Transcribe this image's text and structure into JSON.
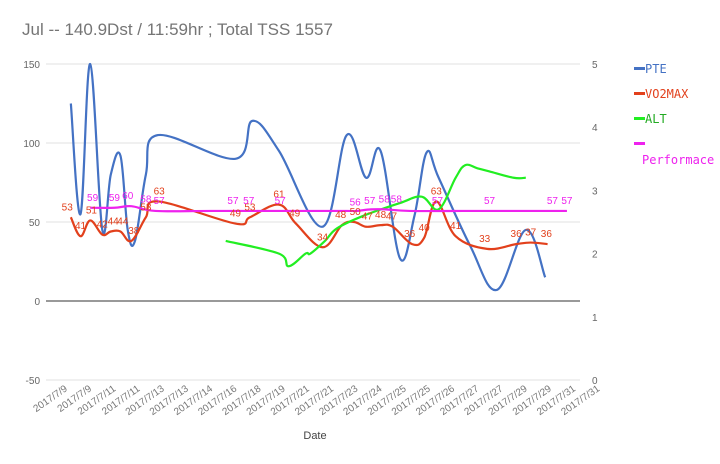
{
  "chart_data": {
    "type": "line",
    "title": "Jul -- 140.9Dst / 11:59hr ; Total TSS 1557",
    "xlabel": "Date",
    "ylabel_left": "",
    "ylabel_right": "",
    "ylim_left": [
      -50,
      150
    ],
    "ylim_right": [
      0,
      5
    ],
    "left_ticks": [
      "-50",
      "0",
      "50",
      "100",
      "150"
    ],
    "right_ticks": [
      "0",
      "1",
      "2",
      "3",
      "4",
      "5"
    ],
    "categories": [
      "2017/7/9",
      "2017/7/9",
      "2017/7/11",
      "2017/7/11",
      "2017/7/13",
      "2017/7/13",
      "2017/7/14",
      "2017/7/16",
      "2017/7/18",
      "2017/7/19",
      "2017/7/21",
      "2017/7/21",
      "2017/7/23",
      "2017/7/24",
      "2017/7/25",
      "2017/7/25",
      "2017/7/26",
      "2017/7/27",
      "2017/7/27",
      "2017/7/29",
      "2017/7/29",
      "2017/7/31",
      "2017/7/31"
    ],
    "grid": true,
    "legend_position": "right",
    "colors": {
      "PTE": "#4472c4",
      "VO2MAX": "#e2401c",
      "ALT": "#22ee22",
      "Performace": "#ee22ee"
    },
    "series": [
      {
        "name": "PTE",
        "axis": "left",
        "points": [
          [
            0.2,
            125
          ],
          [
            0.6,
            55
          ],
          [
            1.0,
            150
          ],
          [
            1.5,
            45
          ],
          [
            1.85,
            80
          ],
          [
            2.25,
            92
          ],
          [
            2.55,
            45
          ],
          [
            2.85,
            38
          ],
          [
            3.3,
            80
          ],
          [
            3.8,
            105
          ],
          [
            7.0,
            90
          ],
          [
            7.7,
            114
          ],
          [
            8.8,
            95
          ],
          [
            10.6,
            47
          ],
          [
            11.6,
            105
          ],
          [
            12.4,
            78
          ],
          [
            13.0,
            95
          ],
          [
            13.8,
            27
          ],
          [
            14.4,
            54
          ],
          [
            14.9,
            94
          ],
          [
            15.4,
            78
          ],
          [
            16.7,
            35
          ],
          [
            17.8,
            7
          ],
          [
            19.0,
            45
          ],
          [
            19.8,
            15
          ]
        ]
      },
      {
        "name": "VO2MAX",
        "axis": "left",
        "points": [
          [
            0.2,
            53
          ],
          [
            0.6,
            41
          ],
          [
            1.0,
            51
          ],
          [
            1.5,
            42
          ],
          [
            1.85,
            44
          ],
          [
            2.25,
            44
          ],
          [
            2.7,
            38
          ],
          [
            3.3,
            53
          ],
          [
            3.8,
            63
          ],
          [
            7.0,
            49
          ],
          [
            7.6,
            53
          ],
          [
            8.8,
            61
          ],
          [
            9.5,
            49
          ],
          [
            10.6,
            34
          ],
          [
            11.4,
            48
          ],
          [
            11.9,
            50
          ],
          [
            12.4,
            47
          ],
          [
            13.0,
            48
          ],
          [
            13.5,
            47
          ],
          [
            14.3,
            36
          ],
          [
            14.8,
            40
          ],
          [
            15.3,
            63
          ],
          [
            16.1,
            41
          ],
          [
            17.4,
            33
          ],
          [
            18.6,
            36
          ],
          [
            19.2,
            37
          ],
          [
            19.9,
            36
          ]
        ]
      },
      {
        "name": "ALT",
        "axis": "right",
        "points": [
          [
            6.6,
            2.2
          ],
          [
            8.8,
            2.0
          ],
          [
            9.2,
            1.8
          ],
          [
            9.9,
            2.0
          ],
          [
            10.1,
            2.0
          ],
          [
            10.7,
            2.2
          ],
          [
            11.2,
            2.4
          ],
          [
            12.3,
            2.6
          ],
          [
            13.8,
            2.8
          ],
          [
            14.7,
            2.9
          ],
          [
            15.4,
            2.7
          ],
          [
            16.1,
            3.2
          ],
          [
            16.5,
            3.4
          ],
          [
            17.0,
            3.35
          ],
          [
            17.5,
            3.3
          ],
          [
            18.5,
            3.2
          ],
          [
            19.0,
            3.2
          ]
        ]
      },
      {
        "name": "Performace",
        "axis": "left",
        "points": [
          [
            1.0,
            59
          ],
          [
            2.0,
            59
          ],
          [
            2.7,
            60
          ],
          [
            3.7,
            57
          ],
          [
            6.0,
            57
          ],
          [
            8.8,
            57
          ],
          [
            11.6,
            57
          ],
          [
            12.0,
            57
          ],
          [
            12.6,
            58
          ],
          [
            13.2,
            58
          ],
          [
            14.2,
            57
          ],
          [
            16.4,
            57
          ],
          [
            17.0,
            57
          ],
          [
            18.0,
            57
          ],
          [
            19.4,
            57
          ],
          [
            20.7,
            57
          ]
        ]
      }
    ],
    "data_labels": [
      {
        "series": "VO2MAX",
        "x": 0.05,
        "y": 53,
        "text": "53"
      },
      {
        "series": "VO2MAX",
        "x": 0.6,
        "y": 41,
        "text": "41"
      },
      {
        "series": "VO2MAX",
        "x": 1.05,
        "y": 51,
        "text": "51"
      },
      {
        "series": "VO2MAX",
        "x": 1.5,
        "y": 42,
        "text": "42"
      },
      {
        "series": "VO2MAX",
        "x": 1.95,
        "y": 44,
        "text": "44"
      },
      {
        "series": "VO2MAX",
        "x": 2.35,
        "y": 44,
        "text": "44"
      },
      {
        "series": "VO2MAX",
        "x": 2.8,
        "y": 38,
        "text": "38"
      },
      {
        "series": "VO2MAX",
        "x": 3.3,
        "y": 53,
        "text": "53"
      },
      {
        "series": "VO2MAX",
        "x": 3.85,
        "y": 63,
        "text": "63"
      },
      {
        "series": "VO2MAX",
        "x": 7.0,
        "y": 49,
        "text": "49"
      },
      {
        "series": "VO2MAX",
        "x": 7.6,
        "y": 53,
        "text": "53"
      },
      {
        "series": "VO2MAX",
        "x": 8.8,
        "y": 61,
        "text": "61"
      },
      {
        "series": "VO2MAX",
        "x": 9.45,
        "y": 49,
        "text": "49"
      },
      {
        "series": "VO2MAX",
        "x": 10.6,
        "y": 34,
        "text": "34"
      },
      {
        "series": "VO2MAX",
        "x": 11.35,
        "y": 48,
        "text": "48"
      },
      {
        "series": "VO2MAX",
        "x": 11.95,
        "y": 50,
        "text": "50"
      },
      {
        "series": "VO2MAX",
        "x": 12.45,
        "y": 47,
        "text": "47"
      },
      {
        "series": "VO2MAX",
        "x": 13.0,
        "y": 48,
        "text": "48"
      },
      {
        "series": "VO2MAX",
        "x": 13.45,
        "y": 47,
        "text": "47"
      },
      {
        "series": "VO2MAX",
        "x": 14.2,
        "y": 36,
        "text": "36"
      },
      {
        "series": "VO2MAX",
        "x": 14.8,
        "y": 40,
        "text": "40"
      },
      {
        "series": "VO2MAX",
        "x": 15.3,
        "y": 63,
        "text": "63"
      },
      {
        "series": "VO2MAX",
        "x": 16.1,
        "y": 41,
        "text": "41"
      },
      {
        "series": "VO2MAX",
        "x": 17.3,
        "y": 33,
        "text": "33"
      },
      {
        "series": "VO2MAX",
        "x": 18.6,
        "y": 36,
        "text": "36"
      },
      {
        "series": "VO2MAX",
        "x": 19.2,
        "y": 37,
        "text": "37"
      },
      {
        "series": "VO2MAX",
        "x": 19.85,
        "y": 36,
        "text": "36"
      },
      {
        "series": "Performace",
        "x": 1.1,
        "y": 59,
        "text": "59"
      },
      {
        "series": "Performace",
        "x": 2.0,
        "y": 59,
        "text": "59"
      },
      {
        "series": "Performace",
        "x": 2.55,
        "y": 60,
        "text": "60"
      },
      {
        "series": "Performace",
        "x": 3.3,
        "y": 58,
        "text": "58"
      },
      {
        "series": "Performace",
        "x": 3.85,
        "y": 57,
        "text": "57"
      },
      {
        "series": "Performace",
        "x": 6.9,
        "y": 57,
        "text": "57"
      },
      {
        "series": "Performace",
        "x": 7.55,
        "y": 57,
        "text": "57"
      },
      {
        "series": "Performace",
        "x": 8.85,
        "y": 57,
        "text": "57"
      },
      {
        "series": "Performace",
        "x": 11.95,
        "y": 56,
        "text": "56"
      },
      {
        "series": "Performace",
        "x": 12.55,
        "y": 57,
        "text": "57"
      },
      {
        "series": "Performace",
        "x": 13.15,
        "y": 58,
        "text": "58"
      },
      {
        "series": "Performace",
        "x": 13.65,
        "y": 58,
        "text": "58"
      },
      {
        "series": "Performace",
        "x": 15.35,
        "y": 57,
        "text": "57"
      },
      {
        "series": "Performace",
        "x": 17.5,
        "y": 57,
        "text": "57"
      },
      {
        "series": "Performace",
        "x": 20.1,
        "y": 57,
        "text": "57"
      },
      {
        "series": "Performace",
        "x": 20.7,
        "y": 57,
        "text": "57"
      }
    ]
  }
}
